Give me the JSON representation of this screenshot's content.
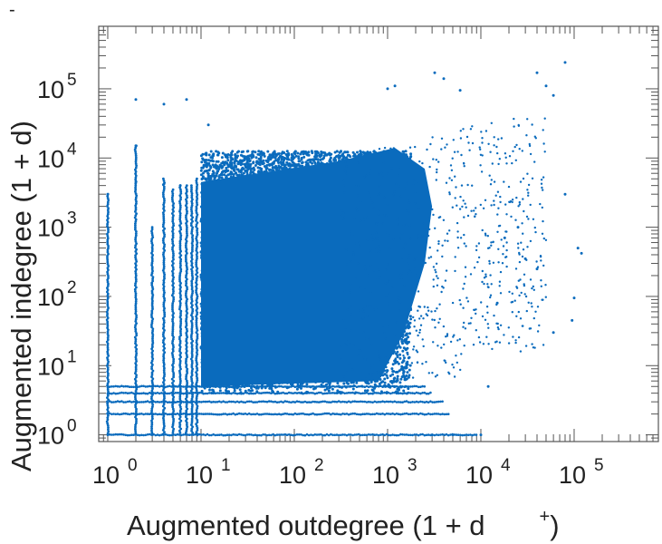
{
  "chart_data": {
    "type": "scatter",
    "xscale": "log",
    "yscale": "log",
    "xlim": [
      0.8,
      800000
    ],
    "ylim": [
      0.8,
      800000
    ],
    "x_ticks": [
      {
        "value": 1,
        "base": "10",
        "exp": "0"
      },
      {
        "value": 10,
        "base": "10",
        "exp": "1"
      },
      {
        "value": 100,
        "base": "10",
        "exp": "2"
      },
      {
        "value": 1000,
        "base": "10",
        "exp": "3"
      },
      {
        "value": 10000,
        "base": "10",
        "exp": "4"
      },
      {
        "value": 100000,
        "base": "10",
        "exp": "5"
      }
    ],
    "y_ticks": [
      {
        "value": 1,
        "base": "10",
        "exp": "0"
      },
      {
        "value": 10,
        "base": "10",
        "exp": "1"
      },
      {
        "value": 100,
        "base": "10",
        "exp": "2"
      },
      {
        "value": 1000,
        "base": "10",
        "exp": "3"
      },
      {
        "value": 10000,
        "base": "10",
        "exp": "4"
      },
      {
        "value": 100000,
        "base": "10",
        "exp": "5"
      }
    ],
    "xlabel_main": "Augmented outdegree (1 + d",
    "xlabel_sup": "+",
    "xlabel_end": ")",
    "ylabel_main": "Augmented indegree (1 + d",
    "ylabel_sup": "-",
    "ylabel_end": ")",
    "grid": false,
    "point_color": "#0a6bbd",
    "sample_points": [
      [
        2,
        70000
      ],
      [
        4,
        60000
      ],
      [
        7,
        70000
      ],
      [
        12,
        30000
      ],
      [
        80000,
        240000
      ],
      [
        40000,
        170000
      ],
      [
        3200,
        170000
      ],
      [
        4000,
        140000
      ],
      [
        1000,
        100000
      ],
      [
        1200,
        110000
      ],
      [
        6000,
        95000
      ],
      [
        50000,
        110000
      ],
      [
        60000,
        80000
      ],
      [
        80000,
        3000
      ],
      [
        110000,
        500
      ],
      [
        120000,
        420
      ],
      [
        100000,
        95
      ],
      [
        95000,
        45
      ],
      [
        60000,
        30
      ],
      [
        40000,
        250
      ],
      [
        30000,
        350
      ],
      [
        25000,
        1000
      ],
      [
        18000,
        700
      ],
      [
        15000,
        80
      ],
      [
        12000,
        5
      ],
      [
        3000,
        1
      ],
      [
        5000,
        1
      ],
      [
        10000,
        1
      ],
      [
        2,
        15000
      ],
      [
        1,
        3000
      ],
      [
        2,
        4500
      ],
      [
        4,
        4200
      ],
      [
        6,
        4000
      ]
    ]
  }
}
